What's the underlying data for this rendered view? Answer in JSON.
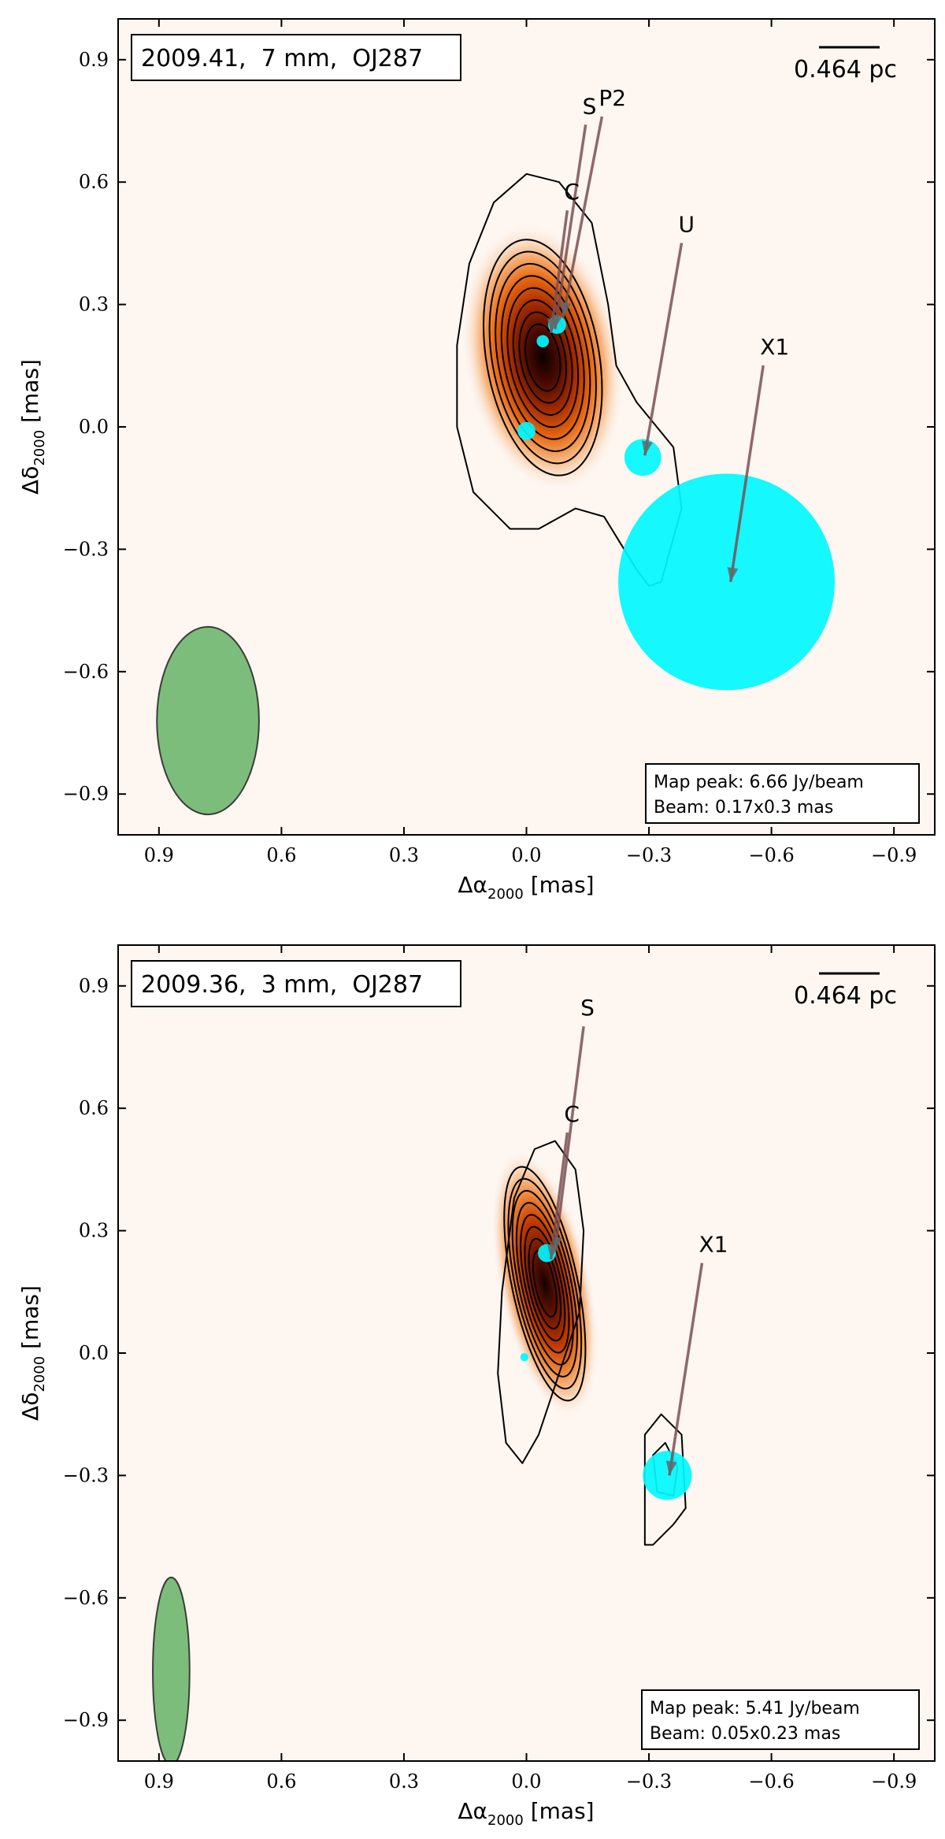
{
  "chart_data": [
    {
      "type": "heatmap",
      "subtype": "vlbi-contour-map",
      "title": "2009.41,  7 mm,  OJ287",
      "scale_bar": "0.464 pc",
      "xlabel": "Δα",
      "xlabel_sub": "2000",
      "xlabel_unit": " [mas]",
      "ylabel": "Δδ",
      "ylabel_sub": "2000",
      "ylabel_unit": " [mas]",
      "xlim": [
        1.0,
        -1.0
      ],
      "ylim": [
        -1.0,
        1.0
      ],
      "xticks": [
        0.9,
        0.6,
        0.3,
        0.0,
        -0.3,
        -0.6,
        -0.9
      ],
      "xtick_labels": [
        "0.9",
        "0.6",
        "0.3",
        "0.0",
        "−0.3",
        "−0.6",
        "−0.9"
      ],
      "yticks": [
        0.9,
        0.6,
        0.3,
        0.0,
        -0.3,
        -0.6,
        -0.9
      ],
      "ytick_labels": [
        "0.9",
        "0.6",
        "0.3",
        "0.0",
        "−0.3",
        "−0.6",
        "−0.9"
      ],
      "map_peak": "Map peak: 6.66 Jy/beam",
      "beam_text": "Beam: 0.17x0.3 mas",
      "beam": {
        "x": 0.78,
        "y": -0.72,
        "major": 0.46,
        "minor": 0.25
      },
      "emission": {
        "x": -0.04,
        "y": 0.17,
        "sx": 0.06,
        "sy": 0.15,
        "tilt": -10
      },
      "contour_levels": [
        0.56,
        0.47,
        0.38,
        0.3,
        0.23,
        0.16,
        0.1,
        0.05
      ],
      "outer_contour": [
        [
          0.04,
          -0.25
        ],
        [
          0.13,
          -0.16
        ],
        [
          0.17,
          0.0
        ],
        [
          0.17,
          0.2
        ],
        [
          0.14,
          0.4
        ],
        [
          0.08,
          0.55
        ],
        [
          0.0,
          0.62
        ],
        [
          -0.08,
          0.6
        ],
        [
          -0.16,
          0.5
        ],
        [
          -0.2,
          0.3
        ],
        [
          -0.22,
          0.15
        ],
        [
          -0.27,
          0.06
        ],
        [
          -0.36,
          -0.05
        ],
        [
          -0.38,
          -0.2
        ],
        [
          -0.33,
          -0.38
        ],
        [
          -0.3,
          -0.39
        ],
        [
          -0.27,
          -0.35
        ],
        [
          -0.19,
          -0.22
        ],
        [
          -0.12,
          -0.2
        ],
        [
          -0.03,
          -0.25
        ]
      ],
      "components": [
        {
          "x": 0.0,
          "y": -0.01,
          "r": 0.022
        },
        {
          "x": -0.04,
          "y": 0.21,
          "r": 0.015
        },
        {
          "x": -0.075,
          "y": 0.25,
          "r": 0.022
        },
        {
          "x": -0.285,
          "y": -0.075,
          "r": 0.045
        },
        {
          "x": -0.49,
          "y": -0.38,
          "r": 0.265
        }
      ],
      "annotations": [
        {
          "label": "S",
          "tx": -0.145,
          "ty": 0.76,
          "ax": -0.07,
          "ay": 0.24
        },
        {
          "label": "P2",
          "tx": -0.185,
          "ty": 0.78,
          "ax": -0.09,
          "ay": 0.27
        },
        {
          "label": "C",
          "tx": -0.1,
          "ty": 0.55,
          "ax": -0.06,
          "ay": 0.23
        },
        {
          "label": "U",
          "tx": -0.38,
          "ty": 0.47,
          "ax": -0.29,
          "ay": -0.07
        },
        {
          "label": "X1",
          "tx": -0.58,
          "ty": 0.17,
          "ax": -0.5,
          "ay": -0.38
        }
      ]
    },
    {
      "type": "heatmap",
      "subtype": "vlbi-contour-map",
      "title": "2009.36,  3 mm,  OJ287",
      "scale_bar": "0.464 pc",
      "xlabel": "Δα",
      "xlabel_sub": "2000",
      "xlabel_unit": " [mas]",
      "ylabel": "Δδ",
      "ylabel_sub": "2000",
      "ylabel_unit": " [mas]",
      "xlim": [
        1.0,
        -1.0
      ],
      "ylim": [
        -1.0,
        1.0
      ],
      "xticks": [
        0.9,
        0.6,
        0.3,
        0.0,
        -0.3,
        -0.6,
        -0.9
      ],
      "xtick_labels": [
        "0.9",
        "0.6",
        "0.3",
        "0.0",
        "−0.3",
        "−0.6",
        "−0.9"
      ],
      "yticks": [
        0.9,
        0.6,
        0.3,
        0.0,
        -0.3,
        -0.6,
        -0.9
      ],
      "ytick_labels": [
        "0.9",
        "0.6",
        "0.3",
        "0.0",
        "−0.3",
        "−0.6",
        "−0.9"
      ],
      "map_peak": "Map peak: 5.41 Jy/beam",
      "beam_text": "Beam: 0.05x0.23 mas",
      "beam": {
        "x": 0.87,
        "y": -0.78,
        "major": 0.46,
        "minor": 0.09
      },
      "emission": {
        "x": -0.045,
        "y": 0.17,
        "sx": 0.035,
        "sy": 0.15,
        "tilt": -12
      },
      "contour_levels": [
        0.5,
        0.42,
        0.35,
        0.28,
        0.22,
        0.16,
        0.11,
        0.07
      ],
      "outer_contour": [
        [
          0.01,
          -0.27
        ],
        [
          0.05,
          -0.22
        ],
        [
          0.07,
          -0.05
        ],
        [
          0.06,
          0.15
        ],
        [
          0.03,
          0.38
        ],
        [
          -0.02,
          0.5
        ],
        [
          -0.07,
          0.52
        ],
        [
          -0.12,
          0.45
        ],
        [
          -0.14,
          0.3
        ],
        [
          -0.13,
          0.1
        ],
        [
          -0.08,
          -0.05
        ],
        [
          -0.03,
          -0.2
        ]
      ],
      "second_contours": [
        [
          [
            -0.29,
            -0.47
          ],
          [
            -0.29,
            -0.2
          ],
          [
            -0.33,
            -0.15
          ],
          [
            -0.38,
            -0.2
          ],
          [
            -0.39,
            -0.38
          ],
          [
            -0.36,
            -0.42
          ],
          [
            -0.31,
            -0.47
          ]
        ],
        [
          [
            -0.32,
            -0.34
          ],
          [
            -0.31,
            -0.25
          ],
          [
            -0.34,
            -0.22
          ],
          [
            -0.37,
            -0.28
          ],
          [
            -0.36,
            -0.35
          ]
        ]
      ],
      "components": [
        {
          "x": -0.05,
          "y": 0.245,
          "r": 0.022
        },
        {
          "x": 0.005,
          "y": -0.01,
          "r": 0.01
        },
        {
          "x": -0.345,
          "y": -0.3,
          "r": 0.06
        }
      ],
      "annotations": [
        {
          "label": "S",
          "tx": -0.14,
          "ty": 0.82,
          "ax": -0.07,
          "ay": 0.25
        },
        {
          "label": "C",
          "tx": -0.1,
          "ty": 0.56,
          "ax": -0.06,
          "ay": 0.23
        },
        {
          "label": "X1",
          "tx": -0.43,
          "ty": 0.24,
          "ax": -0.35,
          "ay": -0.3
        }
      ]
    }
  ]
}
